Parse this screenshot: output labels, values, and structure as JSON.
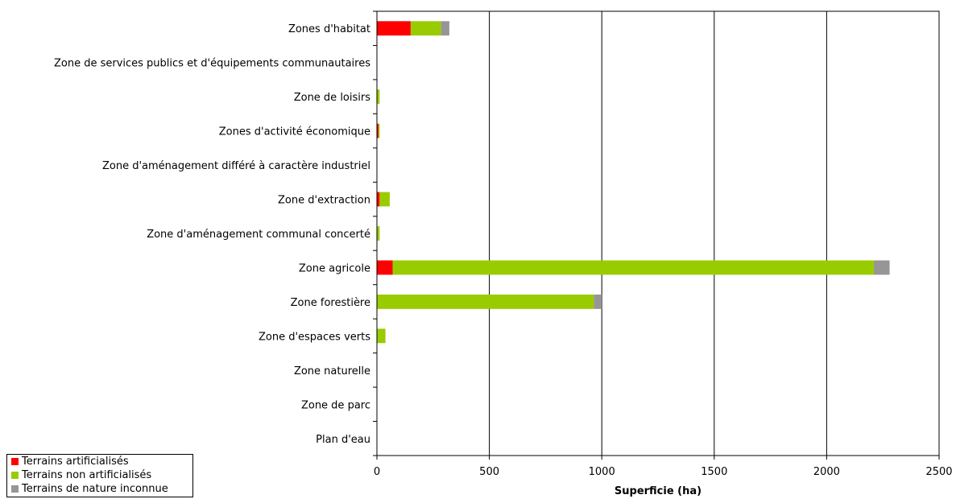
{
  "chart_data": {
    "type": "bar",
    "orientation": "horizontal",
    "stacked": true,
    "categories": [
      "Zones d'habitat",
      "Zone de services publics et d'équipements communautaires",
      "Zone de loisirs",
      "Zones d'activité économique",
      "Zone d'aménagement différé à caractère industriel",
      "Zone d'extraction",
      "Zone d'aménagement communal concerté",
      "Zone agricole",
      "Zone forestière",
      "Zone d'espaces verts",
      "Zone naturelle",
      "Zone de parc",
      "Plan d'eau"
    ],
    "series": [
      {
        "name": "Terrains artificialisés",
        "color": "#ff0000",
        "values": [
          150,
          0,
          0,
          7,
          0,
          12,
          0,
          70,
          0,
          0,
          0,
          0,
          0
        ]
      },
      {
        "name": "Terrains non artificialisés",
        "color": "#99cc00",
        "values": [
          135,
          0,
          12,
          5,
          0,
          45,
          12,
          2140,
          965,
          38,
          0,
          0,
          0
        ]
      },
      {
        "name": "Terrains de nature inconnue",
        "color": "#969696",
        "values": [
          37,
          0,
          0,
          0,
          0,
          0,
          0,
          70,
          35,
          0,
          0,
          0,
          0
        ]
      }
    ],
    "xlabel": "Superficie (ha)",
    "xlim": [
      0,
      2500
    ],
    "xticks": [
      "0",
      "500",
      "1000",
      "1500",
      "2000",
      "2500"
    ],
    "grid": "vertical",
    "legend_position": "bottom-left"
  }
}
